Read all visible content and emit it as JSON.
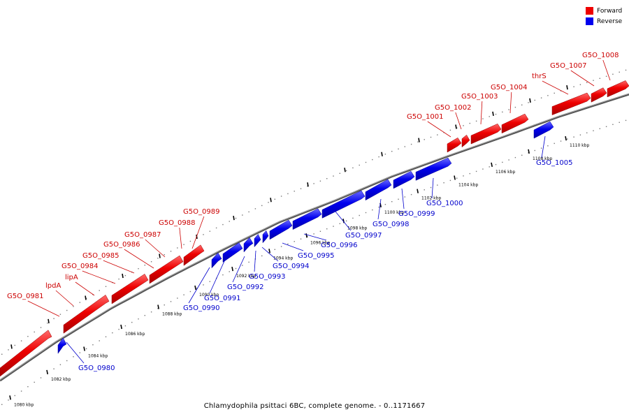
{
  "caption": "Chlamydophila psittaci 6BC, complete genome. - 0..1171667",
  "legend": {
    "items": [
      {
        "label": "Forward",
        "color": "#ff0000"
      },
      {
        "label": "Reverse",
        "color": "#0000ff"
      }
    ]
  },
  "colors": {
    "forward": "#ee0000",
    "reverse": "#0000ee",
    "forward_label": "#cc0000",
    "reverse_label": "#0000cc"
  },
  "ticks": [
    "1080 kbp",
    "1082 kbp",
    "1084 kbp",
    "1086 kbp",
    "1088 kbp",
    "1090 kbp",
    "1092 kbp",
    "1094 kbp",
    "1096 kbp",
    "1098 kbp",
    "1100 kbp",
    "1102 kbp",
    "1104 kbp",
    "1106 kbp",
    "1108 kbp",
    "1110 kbp"
  ],
  "forward_labels": [
    "G5O_0981",
    "lpdA",
    "lipA",
    "G5O_0984",
    "G5O_0985",
    "G5O_0986",
    "G5O_0987",
    "G5O_0988",
    "G5O_0989",
    "G5O_1001",
    "G5O_1002",
    "G5O_1003",
    "G5O_1004",
    "thrS",
    "G5O_1007",
    "G5O_1008"
  ],
  "reverse_labels": [
    "G5O_0980",
    "G5O_0990",
    "G5O_0991",
    "G5O_0992",
    "G5O_0993",
    "G5O_0994",
    "G5O_0995",
    "G5O_0996",
    "G5O_0997",
    "G5O_0998",
    "G5O_0999",
    "G5O_1000",
    "G5O_1005"
  ]
}
